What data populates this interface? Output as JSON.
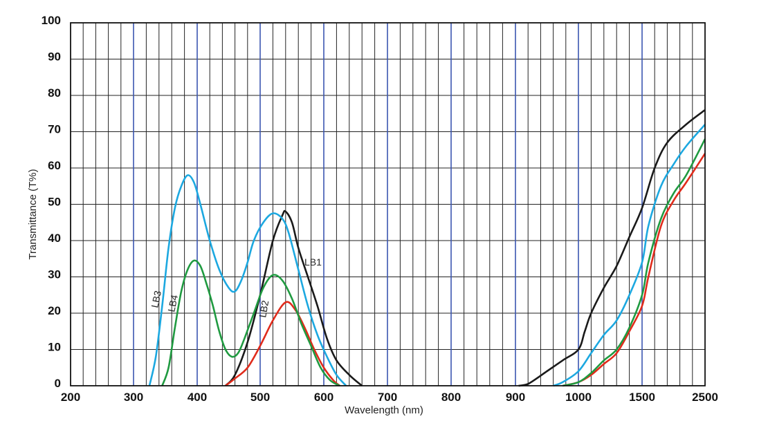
{
  "chart_data": {
    "type": "line",
    "title": "",
    "xlabel": "Wavelength (nm)",
    "ylabel": "Transmittance (T%)",
    "ylim": [
      0,
      100
    ],
    "x_scale": "segmented (linear 200–900 nm, compressed 900–2500 nm)",
    "x_ticks": [
      "200",
      "300",
      "400",
      "500",
      "600",
      "700",
      "800",
      "900",
      "1000",
      "1500",
      "2500"
    ],
    "y_ticks": [
      "0",
      "10",
      "20",
      "30",
      "40",
      "50",
      "60",
      "70",
      "80",
      "90",
      "100"
    ],
    "grid": true,
    "series": [
      {
        "name": "LB1",
        "color": "#1a1a1a",
        "points": [
          [
            445,
            0
          ],
          [
            460,
            3
          ],
          [
            480,
            12
          ],
          [
            500,
            25
          ],
          [
            520,
            40
          ],
          [
            535,
            47
          ],
          [
            540,
            48
          ],
          [
            550,
            45
          ],
          [
            560,
            38
          ],
          [
            575,
            30
          ],
          [
            590,
            22
          ],
          [
            605,
            13
          ],
          [
            620,
            7
          ],
          [
            640,
            3
          ],
          [
            660,
            0
          ],
          [
            905,
            0
          ],
          [
            920,
            0.5
          ],
          [
            950,
            4
          ],
          [
            975,
            7
          ],
          [
            1000,
            10
          ],
          [
            1050,
            15
          ],
          [
            1100,
            20
          ],
          [
            1200,
            27
          ],
          [
            1300,
            33
          ],
          [
            1400,
            41
          ],
          [
            1500,
            49
          ],
          [
            1700,
            60
          ],
          [
            1900,
            67
          ],
          [
            2200,
            72
          ],
          [
            2500,
            76
          ]
        ]
      },
      {
        "name": "LB2",
        "color": "#e02b1b",
        "points": [
          [
            445,
            0
          ],
          [
            460,
            2
          ],
          [
            480,
            5
          ],
          [
            500,
            11
          ],
          [
            520,
            18
          ],
          [
            540,
            23
          ],
          [
            555,
            21
          ],
          [
            570,
            16
          ],
          [
            585,
            10
          ],
          [
            600,
            5
          ],
          [
            615,
            1.5
          ],
          [
            625,
            0
          ],
          [
            975,
            0
          ],
          [
            1000,
            1
          ],
          [
            1100,
            3
          ],
          [
            1200,
            6
          ],
          [
            1300,
            9
          ],
          [
            1400,
            15
          ],
          [
            1500,
            22
          ],
          [
            1600,
            30
          ],
          [
            1800,
            44
          ],
          [
            2000,
            51
          ],
          [
            2200,
            56
          ],
          [
            2500,
            64
          ]
        ]
      },
      {
        "name": "LB3",
        "color": "#1ca8e0",
        "points": [
          [
            325,
            0
          ],
          [
            335,
            8
          ],
          [
            345,
            22
          ],
          [
            355,
            38
          ],
          [
            365,
            49
          ],
          [
            375,
            55
          ],
          [
            385,
            58
          ],
          [
            395,
            56
          ],
          [
            405,
            50
          ],
          [
            420,
            40
          ],
          [
            435,
            32
          ],
          [
            450,
            27
          ],
          [
            460,
            26
          ],
          [
            470,
            29
          ],
          [
            480,
            34
          ],
          [
            490,
            40
          ],
          [
            505,
            45
          ],
          [
            520,
            47.5
          ],
          [
            535,
            46
          ],
          [
            545,
            42
          ],
          [
            560,
            32
          ],
          [
            575,
            22
          ],
          [
            590,
            14
          ],
          [
            605,
            8
          ],
          [
            620,
            3
          ],
          [
            635,
            0
          ],
          [
            960,
            0
          ],
          [
            975,
            1
          ],
          [
            1000,
            4
          ],
          [
            1100,
            9
          ],
          [
            1200,
            14
          ],
          [
            1300,
            18
          ],
          [
            1400,
            25
          ],
          [
            1500,
            34
          ],
          [
            1600,
            44
          ],
          [
            1800,
            55
          ],
          [
            2000,
            61
          ],
          [
            2200,
            66
          ],
          [
            2500,
            72
          ]
        ]
      },
      {
        "name": "LB4",
        "color": "#1f9a40",
        "points": [
          [
            345,
            0
          ],
          [
            355,
            5
          ],
          [
            365,
            16
          ],
          [
            375,
            26
          ],
          [
            385,
            32
          ],
          [
            395,
            34.5
          ],
          [
            405,
            33
          ],
          [
            415,
            28
          ],
          [
            425,
            22
          ],
          [
            435,
            15
          ],
          [
            445,
            10
          ],
          [
            455,
            8
          ],
          [
            465,
            9
          ],
          [
            475,
            13
          ],
          [
            490,
            20
          ],
          [
            505,
            27
          ],
          [
            520,
            30.5
          ],
          [
            535,
            29
          ],
          [
            550,
            24
          ],
          [
            565,
            17
          ],
          [
            580,
            11
          ],
          [
            595,
            5
          ],
          [
            610,
            1.5
          ],
          [
            625,
            0
          ],
          [
            975,
            0
          ],
          [
            1000,
            1
          ],
          [
            1100,
            3.5
          ],
          [
            1200,
            7
          ],
          [
            1300,
            10
          ],
          [
            1400,
            16
          ],
          [
            1500,
            25
          ],
          [
            1600,
            34
          ],
          [
            1800,
            46
          ],
          [
            2000,
            53
          ],
          [
            2200,
            58
          ],
          [
            2500,
            68
          ]
        ]
      }
    ]
  }
}
